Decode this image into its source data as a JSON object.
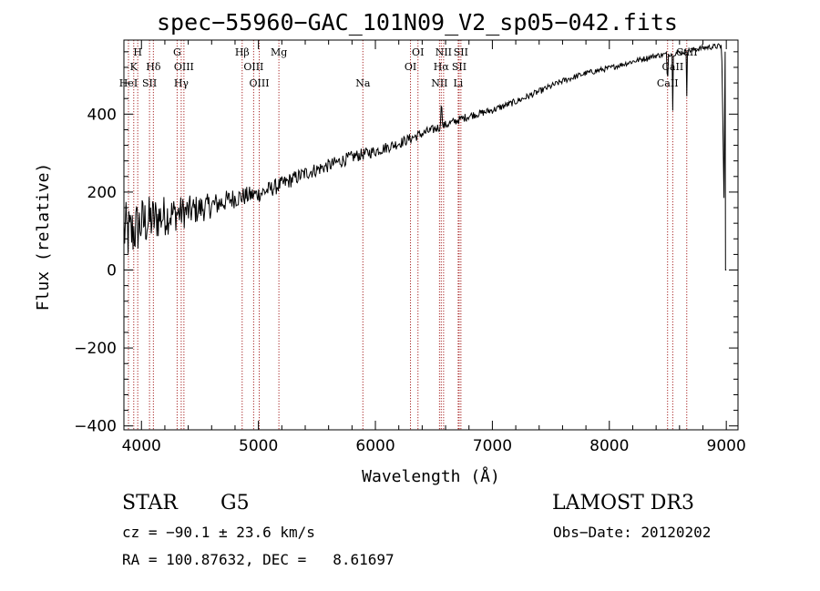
{
  "chart_data": {
    "type": "line",
    "title": "spec−55960−GAC_101N09_V2_sp05−042.fits",
    "xlabel": "Wavelength (Å)",
    "ylabel": "Flux (relative)",
    "xlim": [
      3850,
      9100
    ],
    "ylim": [
      -410,
      590
    ],
    "x_ticks": [
      4000,
      5000,
      6000,
      7000,
      8000,
      9000
    ],
    "x_tick_labels": [
      "4000",
      "5000",
      "6000",
      "7000",
      "8000",
      "9000"
    ],
    "y_ticks": [
      -400,
      -200,
      0,
      200,
      400
    ],
    "y_tick_labels": [
      "−400",
      "−200",
      "0",
      "200",
      "400"
    ],
    "series": [
      {
        "name": "flux",
        "color": "#000000",
        "anchors": [
          [
            3850,
            100
          ],
          [
            3900,
            90
          ],
          [
            4000,
            120
          ],
          [
            4200,
            140
          ],
          [
            4400,
            150
          ],
          [
            4600,
            165
          ],
          [
            4800,
            185
          ],
          [
            5000,
            195
          ],
          [
            5200,
            220
          ],
          [
            5400,
            248
          ],
          [
            5600,
            268
          ],
          [
            5800,
            290
          ],
          [
            6000,
            305
          ],
          [
            6200,
            325
          ],
          [
            6400,
            350
          ],
          [
            6563,
            368
          ],
          [
            6800,
            395
          ],
          [
            7000,
            410
          ],
          [
            7200,
            432
          ],
          [
            7400,
            458
          ],
          [
            7600,
            485
          ],
          [
            7800,
            505
          ],
          [
            8000,
            518
          ],
          [
            8200,
            535
          ],
          [
            8400,
            550
          ],
          [
            8600,
            558
          ],
          [
            8800,
            570
          ],
          [
            8960,
            575
          ],
          [
            8990,
            0
          ]
        ],
        "noise": [
          [
            3850,
            80
          ],
          [
            4000,
            70
          ],
          [
            4300,
            45
          ],
          [
            4700,
            28
          ],
          [
            5000,
            22
          ],
          [
            5500,
            18
          ],
          [
            6000,
            15
          ],
          [
            7000,
            9
          ],
          [
            8000,
            7
          ],
          [
            9000,
            7
          ]
        ],
        "absorption_dips": [
          {
            "wavelength": 8498,
            "depth": 50
          },
          {
            "wavelength": 8542,
            "depth": 150
          },
          {
            "wavelength": 8662,
            "depth": 110
          }
        ],
        "emission_spikes": [
          {
            "wavelength": 6563,
            "height": 60
          }
        ]
      }
    ],
    "lines": [
      {
        "label": "H",
        "wavelength": 3968,
        "row": 0
      },
      {
        "label": "K",
        "wavelength": 3934,
        "row": 1
      },
      {
        "label": "HeI",
        "wavelength": 3889,
        "row": 2
      },
      {
        "label": "SII",
        "wavelength": 4069,
        "row": 2
      },
      {
        "label": "Hδ",
        "wavelength": 4102,
        "row": 1
      },
      {
        "label": "G",
        "wavelength": 4305,
        "row": 0
      },
      {
        "label": "OIII",
        "wavelength": 4363,
        "row": 1
      },
      {
        "label": "Hγ",
        "wavelength": 4340,
        "row": 2
      },
      {
        "label": "Hβ",
        "wavelength": 4861,
        "row": 0
      },
      {
        "label": "OIII",
        "wavelength": 4959,
        "row": 1
      },
      {
        "label": "OIII",
        "wavelength": 5007,
        "row": 2
      },
      {
        "label": "Mg",
        "wavelength": 5175,
        "row": 0
      },
      {
        "label": "Na",
        "wavelength": 5893,
        "row": 2
      },
      {
        "label": "OI",
        "wavelength": 6300,
        "row": 1
      },
      {
        "label": "OI",
        "wavelength": 6364,
        "row": 0
      },
      {
        "label": "NII",
        "wavelength": 6548,
        "row": 2
      },
      {
        "label": "NII",
        "wavelength": 6583,
        "row": 0
      },
      {
        "label": "Hα",
        "wavelength": 6563,
        "row": 1
      },
      {
        "label": "SII",
        "wavelength": 6716,
        "row": 1
      },
      {
        "label": "SII",
        "wavelength": 6731,
        "row": 0
      },
      {
        "label": "Li",
        "wavelength": 6708,
        "row": 2
      },
      {
        "label": "CaII",
        "wavelength": 8498,
        "row": 2
      },
      {
        "label": "CaII",
        "wavelength": 8542,
        "row": 1
      },
      {
        "label": "CaII",
        "wavelength": 8662,
        "row": 0
      }
    ],
    "line_color": "#aa2a2a"
  },
  "info": {
    "object_class": "STAR",
    "subclass": "G5",
    "survey": "LAMOST DR3",
    "redshift": "cz = −90.1 ± 23.6 km/s",
    "obs_date": "Obs−Date: 20120202",
    "coords": "RA = 100.87632, DEC =   8.61697"
  }
}
